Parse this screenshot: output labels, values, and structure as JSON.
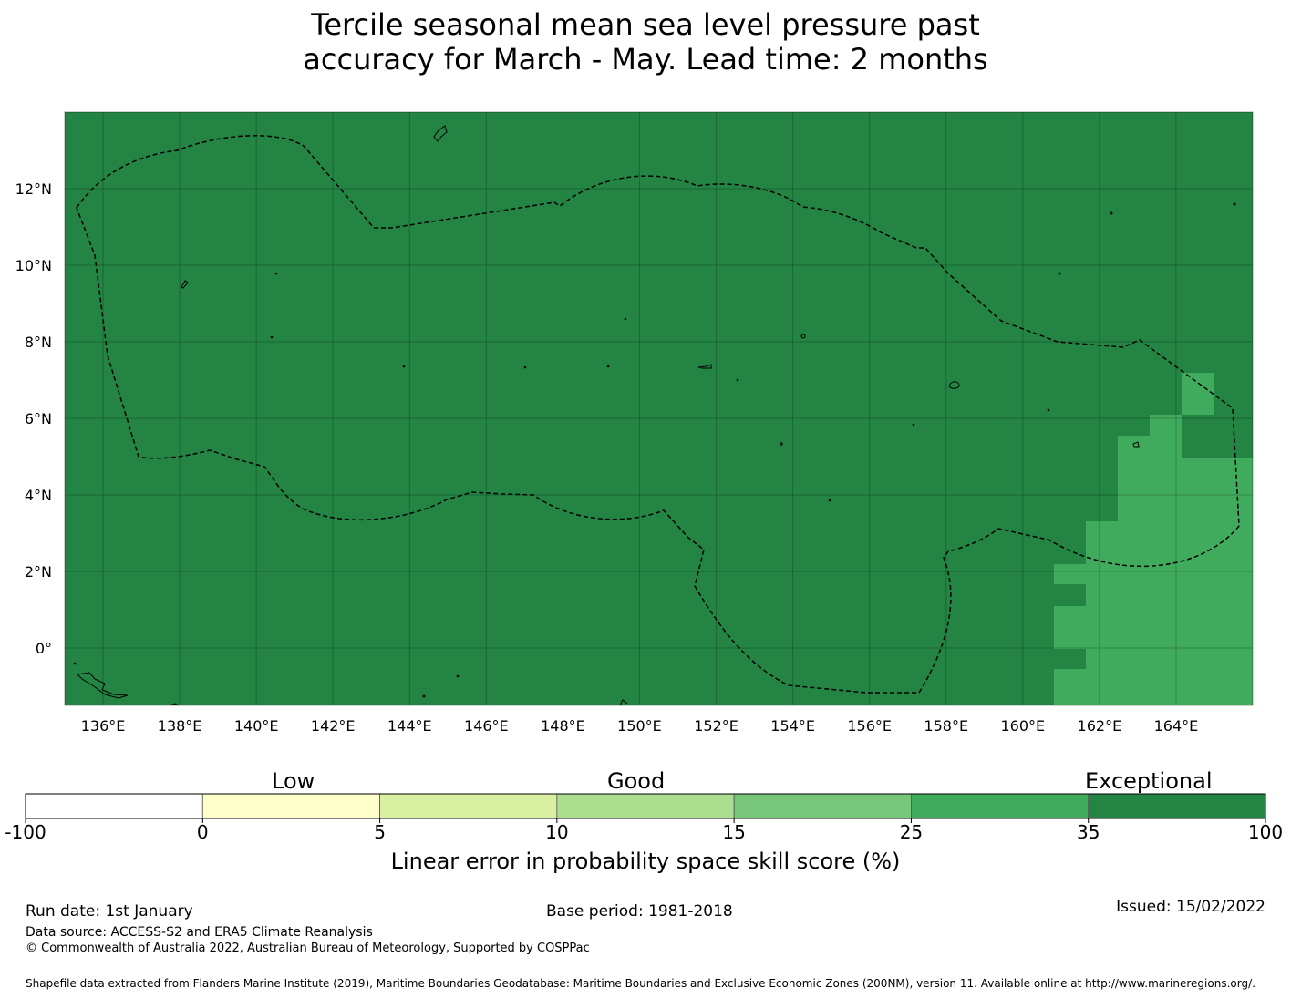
{
  "title": {
    "line1": "Tercile seasonal mean sea level pressure past",
    "line2": "accuracy for March - May. Lead time: 2 months"
  },
  "map": {
    "lon_range": [
      135.0,
      166.0
    ],
    "lat_range": [
      -1.5,
      14.0
    ],
    "lon_ticks": [
      "136°E",
      "138°E",
      "140°E",
      "142°E",
      "144°E",
      "146°E",
      "148°E",
      "150°E",
      "152°E",
      "154°E",
      "156°E",
      "158°E",
      "160°E",
      "162°E",
      "164°E"
    ],
    "lat_ticks": [
      "12°N",
      "10°N",
      "8°N",
      "6°N",
      "4°N",
      "2°N",
      "0°"
    ],
    "colors": {
      "exceptional": "#238443",
      "category_25_35": "#41ab5d",
      "boundary_line": "#000000"
    }
  },
  "colorbar": {
    "groups": {
      "low": "Low",
      "good": "Good",
      "exceptional": "Exceptional"
    },
    "ticks": [
      "-100",
      "0",
      "5",
      "10",
      "15",
      "25",
      "35",
      "100"
    ],
    "colors": [
      "#ffffff",
      "#ffffcc",
      "#d9f0a3",
      "#addd8e",
      "#78c679",
      "#41ab5d",
      "#238443"
    ],
    "label": "Linear error in probability space skill score (%)"
  },
  "footer": {
    "run_date": "Run date: 1st January",
    "base_period": "Base period: 1981-2018",
    "issued": "Issued: 15/02/2022",
    "data_source": "Data source: ACCESS-S2 and ERA5 Climate Reanalysis",
    "copyright": "© Commonwealth of Australia 2022, Australian Bureau of Meteorology, Supported by COSPPac",
    "shapefile": "Shapefile data extracted from Flanders Marine Institute (2019), Maritime Boundaries Geodatabase: Maritime Boundaries and Exclusive Economic Zones (200NM), version 11. Available online at http://www.marineregions.org/."
  }
}
